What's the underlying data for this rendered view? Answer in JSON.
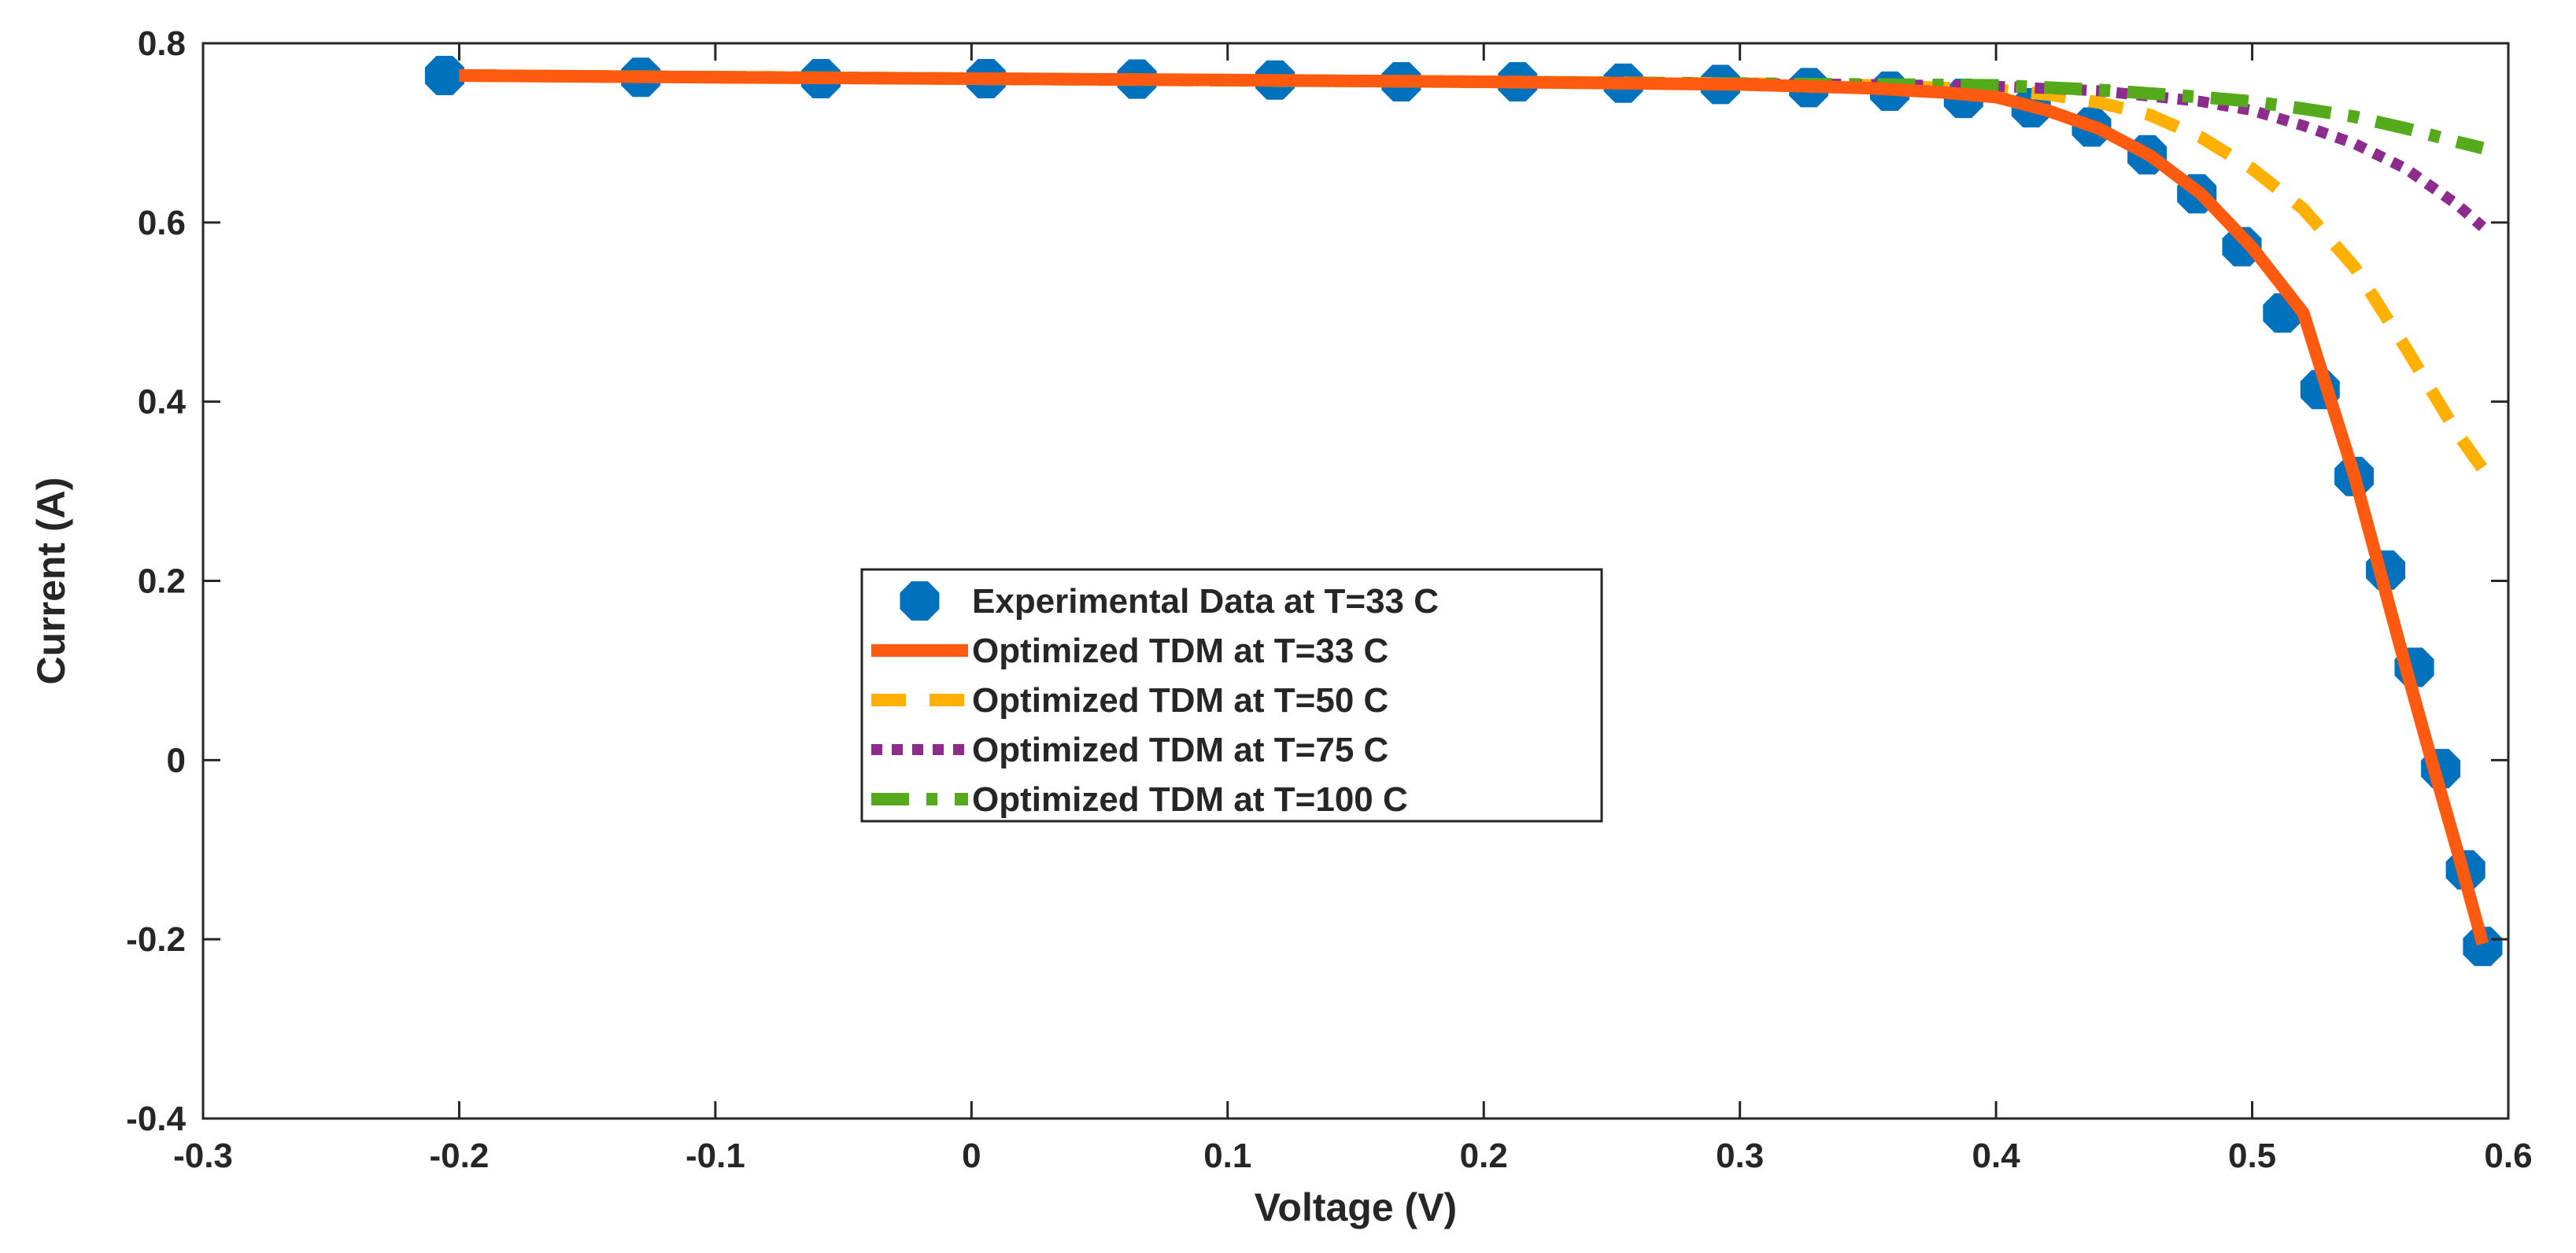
{
  "chart_data": {
    "type": "line",
    "title": "",
    "xlabel": "Voltage (V)",
    "ylabel": "Current (A)",
    "xlim": [
      -0.3,
      0.6
    ],
    "ylim": [
      -0.4,
      0.8
    ],
    "xticks": [
      -0.3,
      -0.2,
      -0.1,
      0,
      0.1,
      0.2,
      0.3,
      0.4,
      0.5,
      0.6
    ],
    "yticks": [
      -0.4,
      -0.2,
      0,
      0.2,
      0.4,
      0.6,
      0.8
    ],
    "xtick_labels": [
      "-0.3",
      "-0.2",
      "-0.1",
      "0",
      "0.1",
      "0.2",
      "0.3",
      "0.4",
      "0.5",
      "0.6"
    ],
    "ytick_labels": [
      "-0.4",
      "-0.2",
      "0",
      "0.2",
      "0.4",
      "0.6",
      "0.8"
    ],
    "grid": false,
    "legend_position": "center",
    "series": [
      {
        "name": "Experimental Data at T=33 C",
        "style": "markers",
        "color": "#0072BD",
        "x": [
          -0.2057,
          -0.1291,
          -0.0588,
          0.0057,
          0.0646,
          0.1185,
          0.1678,
          0.2132,
          0.2545,
          0.2924,
          0.3269,
          0.3585,
          0.3873,
          0.4137,
          0.4373,
          0.459,
          0.4784,
          0.496,
          0.5119,
          0.5265,
          0.5398,
          0.5521,
          0.5633,
          0.5736,
          0.5833,
          0.59
        ],
        "y": [
          0.764,
          0.762,
          0.7605,
          0.7605,
          0.76,
          0.759,
          0.757,
          0.757,
          0.7555,
          0.754,
          0.7505,
          0.7465,
          0.7385,
          0.728,
          0.7065,
          0.6755,
          0.632,
          0.573,
          0.499,
          0.4135,
          0.3165,
          0.212,
          0.1035,
          -0.0095,
          -0.1225,
          -0.208
        ]
      },
      {
        "name": "Optimized TDM at T=33 C",
        "style": "solid",
        "color": "#FF5A0F",
        "x": [
          -0.2,
          -0.1,
          0.0,
          0.1,
          0.2,
          0.3,
          0.35,
          0.38,
          0.4,
          0.42,
          0.44,
          0.46,
          0.48,
          0.5,
          0.52,
          0.54,
          0.56,
          0.57,
          0.58,
          0.59
        ],
        "y": [
          0.764,
          0.762,
          0.7605,
          0.759,
          0.757,
          0.754,
          0.75,
          0.745,
          0.74,
          0.725,
          0.705,
          0.675,
          0.632,
          0.572,
          0.499,
          0.3165,
          0.1035,
          0.0,
          -0.1,
          -0.205
        ]
      },
      {
        "name": "Optimized TDM at T=50 C",
        "style": "dashed",
        "color": "#FFB000",
        "x": [
          -0.2,
          0.0,
          0.2,
          0.3,
          0.35,
          0.4,
          0.42,
          0.44,
          0.46,
          0.48,
          0.5,
          0.52,
          0.54,
          0.56,
          0.58,
          0.59
        ],
        "y": [
          0.764,
          0.7605,
          0.757,
          0.755,
          0.753,
          0.748,
          0.743,
          0.734,
          0.72,
          0.695,
          0.66,
          0.615,
          0.55,
          0.46,
          0.365,
          0.325
        ]
      },
      {
        "name": "Optimized TDM at T=75 C",
        "style": "dotted",
        "color": "#8E2C8E",
        "x": [
          -0.2,
          0.0,
          0.2,
          0.3,
          0.35,
          0.4,
          0.44,
          0.48,
          0.5,
          0.52,
          0.54,
          0.56,
          0.58,
          0.59
        ],
        "y": [
          0.764,
          0.7605,
          0.757,
          0.755,
          0.754,
          0.752,
          0.747,
          0.735,
          0.725,
          0.708,
          0.688,
          0.66,
          0.62,
          0.595
        ]
      },
      {
        "name": "Optimized TDM at T=100 C",
        "style": "dashdot",
        "color": "#55AA1C",
        "x": [
          -0.2,
          0.0,
          0.2,
          0.3,
          0.4,
          0.44,
          0.48,
          0.5,
          0.52,
          0.54,
          0.56,
          0.58,
          0.59
        ],
        "y": [
          0.764,
          0.7605,
          0.757,
          0.755,
          0.753,
          0.748,
          0.74,
          0.735,
          0.727,
          0.718,
          0.705,
          0.69,
          0.683
        ]
      }
    ]
  }
}
